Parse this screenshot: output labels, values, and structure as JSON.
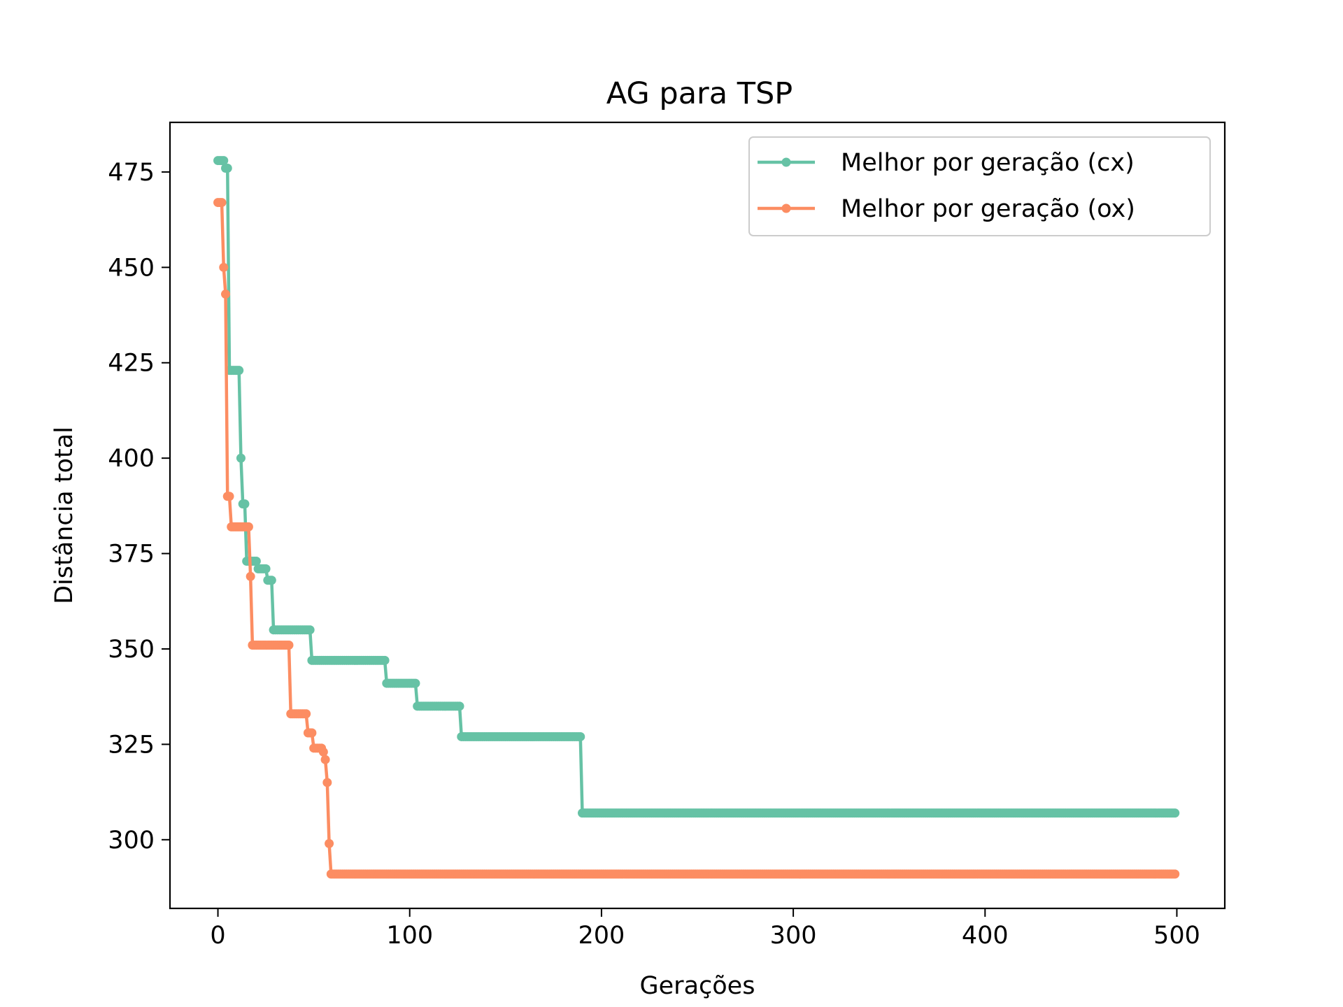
{
  "chart_data": {
    "type": "line",
    "title": "AG para TSP",
    "xlabel": "Gerações",
    "ylabel": "Distância total",
    "xlim": [
      -25,
      525
    ],
    "ylim": [
      282,
      488
    ],
    "xticks": [
      0,
      100,
      200,
      300,
      400,
      500
    ],
    "yticks": [
      300,
      325,
      350,
      375,
      400,
      425,
      450,
      475
    ],
    "grid": false,
    "legend_position": "top-right",
    "series": [
      {
        "name": "Melhor por geração (cx)",
        "color": "#66c2a5",
        "steps": [
          [
            0,
            478
          ],
          [
            4,
            476
          ],
          [
            6,
            423
          ],
          [
            12,
            400
          ],
          [
            13,
            388
          ],
          [
            15,
            373
          ],
          [
            21,
            371
          ],
          [
            26,
            368
          ],
          [
            29,
            355
          ],
          [
            49,
            347
          ],
          [
            88,
            341
          ],
          [
            104,
            335
          ],
          [
            127,
            327
          ],
          [
            190,
            307
          ],
          [
            499,
            307
          ]
        ]
      },
      {
        "name": "Melhor por geração (ox)",
        "color": "#fc8d62",
        "steps": [
          [
            0,
            467
          ],
          [
            3,
            450
          ],
          [
            4,
            443
          ],
          [
            5,
            390
          ],
          [
            7,
            382
          ],
          [
            17,
            369
          ],
          [
            18,
            351
          ],
          [
            38,
            333
          ],
          [
            47,
            328
          ],
          [
            50,
            324
          ],
          [
            55,
            323
          ],
          [
            56,
            321
          ],
          [
            57,
            315
          ],
          [
            58,
            299
          ],
          [
            59,
            291
          ],
          [
            499,
            291
          ]
        ]
      }
    ]
  }
}
